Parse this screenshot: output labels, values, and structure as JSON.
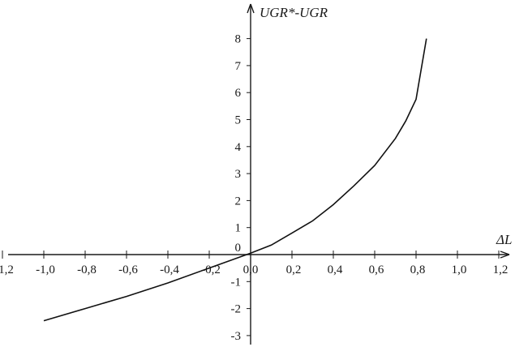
{
  "chart_data": {
    "type": "line",
    "title": "",
    "xlabel": "ΔL",
    "ylabel": "UGR*-UGR",
    "xlim": [
      -1.2,
      1.2
    ],
    "ylim": [
      -3,
      8
    ],
    "grid": false,
    "x_ticks": [
      -1.2,
      -1.0,
      -0.8,
      -0.6,
      -0.4,
      -0.2,
      0.0,
      0.2,
      0.4,
      0.6,
      0.8,
      1.0,
      1.2
    ],
    "x_tick_labels": [
      "-1,2",
      "-1,0",
      "-0,8",
      "-0,6",
      "-0,4",
      "-0,2",
      "0,0",
      "0,2",
      "0,4",
      "0,6",
      "0,8",
      "1,0",
      "1,2"
    ],
    "y_ticks": [
      -3,
      -2,
      -1,
      0,
      1,
      2,
      3,
      4,
      5,
      6,
      7,
      8
    ],
    "y_tick_labels": [
      "-3",
      "-2",
      "-1",
      "0",
      "1",
      "2",
      "3",
      "4",
      "5",
      "6",
      "7",
      "8"
    ],
    "series": [
      {
        "x": [
          -1.0,
          -0.8,
          -0.6,
          -0.4,
          -0.2,
          0.0,
          0.1,
          0.2,
          0.3,
          0.4,
          0.5,
          0.6,
          0.7,
          0.75,
          0.8,
          0.85
        ],
        "y": [
          -2.45,
          -2.0,
          -1.55,
          -1.05,
          -0.5,
          0.05,
          0.35,
          0.8,
          1.25,
          1.85,
          2.55,
          3.3,
          4.3,
          4.95,
          5.75,
          8.0
        ]
      }
    ]
  }
}
